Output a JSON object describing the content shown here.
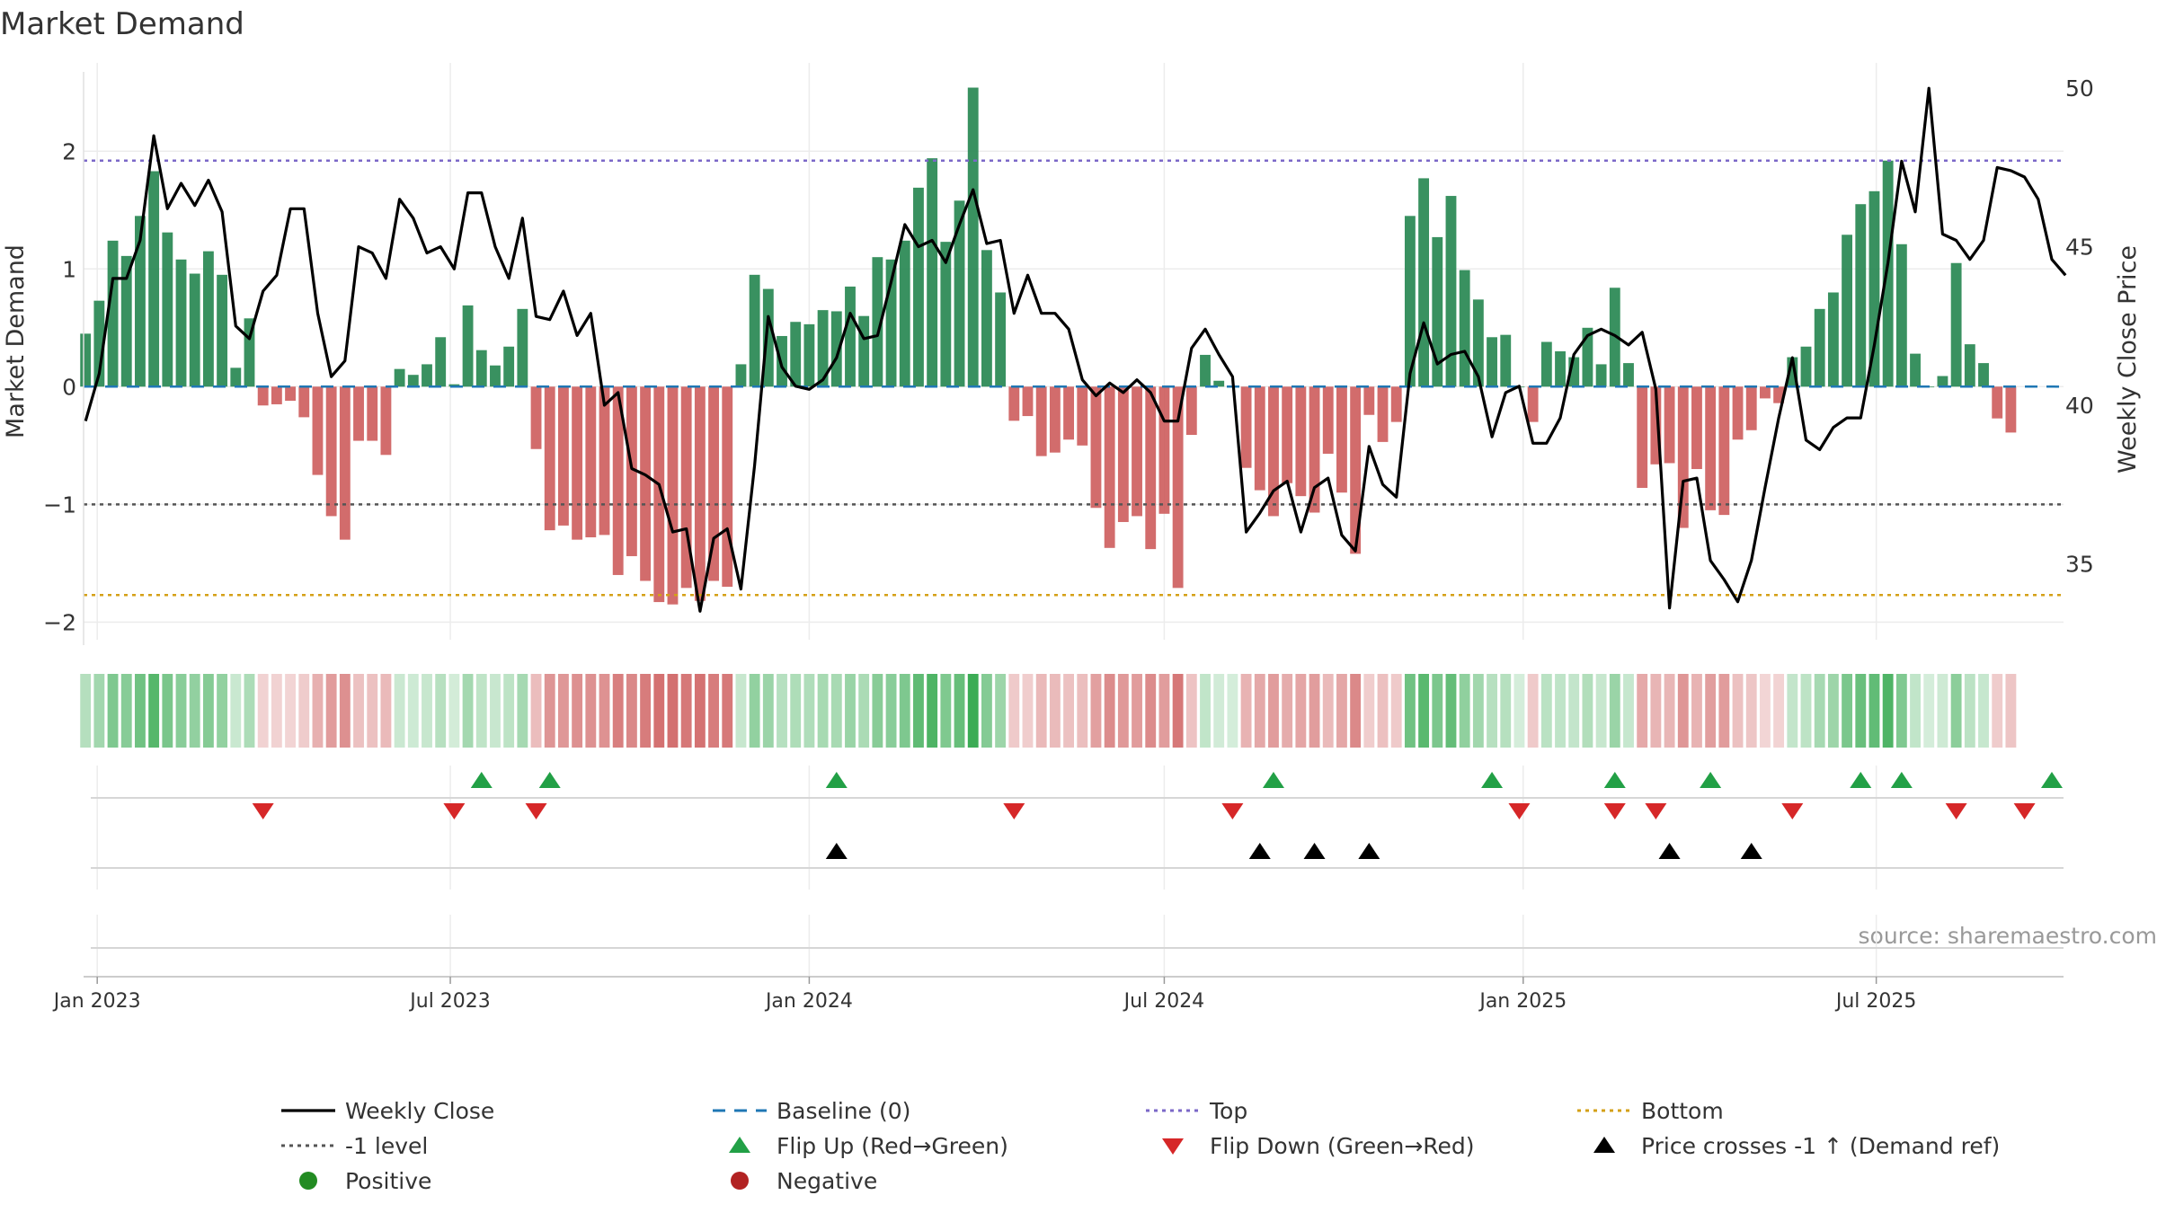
{
  "chart_data": {
    "type": "bar",
    "title": "Market Demand",
    "ylabel": "Market Demand",
    "y2label": "Weekly Close Price",
    "ylim": [
      -2.15,
      2.75
    ],
    "y2lim": [
      32.6,
      50.8
    ],
    "yticks": [
      -2,
      -1,
      0,
      1,
      2
    ],
    "y2ticks": [
      35,
      40,
      45,
      50
    ],
    "x_start": "2022-12-25",
    "x_end": "2025-10-05",
    "week0": "2022-12-26",
    "xticks": [
      {
        "date": "2023-01-01",
        "label": "Jan 2023"
      },
      {
        "date": "2023-07-01",
        "label": "Jul 2023"
      },
      {
        "date": "2024-01-01",
        "label": "Jan 2024"
      },
      {
        "date": "2024-07-01",
        "label": "Jul 2024"
      },
      {
        "date": "2025-01-01",
        "label": "Jan 2025"
      },
      {
        "date": "2025-07-01",
        "label": "Jul 2025"
      }
    ],
    "reference_lines": {
      "baseline": 0,
      "top": 1.92,
      "minus_one": -1,
      "bottom": -1.77
    },
    "demand": [
      0.45,
      0.73,
      1.24,
      1.11,
      1.45,
      1.83,
      1.31,
      1.08,
      0.96,
      1.15,
      0.95,
      0.16,
      0.58,
      -0.16,
      -0.15,
      -0.12,
      -0.26,
      -0.75,
      -1.1,
      -1.3,
      -0.46,
      -0.46,
      -0.58,
      0.15,
      0.1,
      0.19,
      0.42,
      0.02,
      0.69,
      0.31,
      0.18,
      0.34,
      0.66,
      -0.53,
      -1.22,
      -1.18,
      -1.3,
      -1.28,
      -1.26,
      -1.6,
      -1.44,
      -1.65,
      -1.83,
      -1.85,
      -1.71,
      -1.82,
      -1.65,
      -1.7,
      0.19,
      0.95,
      0.83,
      0.43,
      0.55,
      0.53,
      0.65,
      0.64,
      0.85,
      0.6,
      1.1,
      1.08,
      1.24,
      1.69,
      1.94,
      1.23,
      1.58,
      2.54,
      1.16,
      0.8,
      -0.29,
      -0.25,
      -0.59,
      -0.56,
      -0.45,
      -0.5,
      -1.03,
      -1.37,
      -1.15,
      -1.1,
      -1.38,
      -1.08,
      -1.71,
      -0.41,
      0.27,
      0.05,
      0.0,
      -0.69,
      -0.88,
      -1.1,
      -0.82,
      -0.93,
      -1.07,
      -0.57,
      -0.9,
      -1.42,
      -0.24,
      -0.47,
      -0.3,
      1.45,
      1.77,
      1.27,
      1.62,
      0.99,
      0.74,
      0.42,
      0.44,
      0.0,
      -0.3,
      0.38,
      0.3,
      0.25,
      0.5,
      0.19,
      0.84,
      0.2,
      -0.86,
      -0.66,
      -0.65,
      -1.2,
      -0.7,
      -1.05,
      -1.09,
      -0.45,
      -0.37,
      -0.1,
      -0.14,
      0.25,
      0.34,
      0.66,
      0.8,
      1.29,
      1.55,
      1.66,
      1.92,
      1.21,
      0.28,
      0.0,
      0.09,
      1.05,
      0.36,
      0.2,
      -0.27,
      -0.39
    ],
    "close": [
      39.5,
      41.0,
      44.0,
      44.0,
      45.2,
      48.5,
      46.2,
      47.0,
      46.3,
      47.1,
      46.1,
      42.5,
      42.1,
      43.6,
      44.1,
      46.2,
      46.2,
      42.9,
      40.9,
      41.4,
      45.0,
      44.8,
      44.0,
      46.5,
      45.9,
      44.8,
      45.0,
      44.3,
      46.7,
      46.7,
      45.0,
      44.0,
      45.9,
      42.8,
      42.7,
      43.6,
      42.2,
      42.9,
      40.0,
      40.4,
      38.0,
      37.8,
      37.5,
      36.0,
      36.1,
      33.5,
      35.8,
      36.1,
      34.2,
      38.1,
      42.8,
      41.2,
      40.6,
      40.5,
      40.8,
      41.5,
      42.9,
      42.1,
      42.2,
      43.9,
      45.7,
      45.0,
      45.2,
      44.5,
      45.7,
      46.8,
      45.1,
      45.2,
      42.9,
      44.1,
      42.9,
      42.9,
      42.4,
      40.8,
      40.3,
      40.7,
      40.4,
      40.8,
      40.4,
      39.5,
      39.5,
      41.8,
      42.4,
      41.6,
      40.9,
      36.0,
      36.6,
      37.3,
      37.6,
      36.0,
      37.4,
      37.7,
      35.9,
      35.4,
      38.7,
      37.5,
      37.1,
      41.0,
      42.6,
      41.3,
      41.6,
      41.7,
      40.9,
      39.0,
      40.4,
      40.6,
      38.8,
      38.8,
      39.6,
      41.6,
      42.2,
      42.4,
      42.2,
      41.9,
      42.3,
      40.5,
      33.6,
      37.6,
      37.7,
      35.1,
      34.5,
      33.8,
      35.1,
      37.4,
      39.6,
      41.5,
      38.9,
      38.6,
      39.3,
      39.6,
      39.6,
      41.9,
      44.5,
      47.7,
      46.1,
      50.0,
      45.4,
      45.2,
      44.6,
      45.2,
      47.5,
      47.4,
      47.2,
      46.5,
      44.6,
      44.1
    ],
    "flip_up_weeks": [
      29,
      34,
      55,
      87,
      103,
      112,
      119,
      130,
      133,
      144
    ],
    "flip_down_weeks": [
      13,
      27,
      33,
      68,
      84,
      105,
      112,
      115,
      125,
      137,
      142
    ],
    "price_cross_weeks": [
      55,
      86,
      90,
      94,
      116,
      122
    ],
    "source_text": "source: sharemaestro.com",
    "colors": {
      "positive": "#2e8b57",
      "negative": "#cd5c5c",
      "close_line": "#000000",
      "baseline": "#1f77b4",
      "top": "#7b68c8",
      "minus_one": "#555555",
      "bottom": "#d4a017",
      "flip_up": "#22a046",
      "flip_down": "#d62728",
      "cross": "#000000"
    },
    "legend": [
      {
        "label": "Weekly Close",
        "kind": "line",
        "color": "#000000"
      },
      {
        "label": "Baseline (0)",
        "kind": "dash",
        "color": "#1f77b4"
      },
      {
        "label": "Top",
        "kind": "dot",
        "color": "#7b68c8"
      },
      {
        "label": "Bottom",
        "kind": "dot",
        "color": "#d4a017"
      },
      {
        "label": "-1 level",
        "kind": "dot",
        "color": "#555555"
      },
      {
        "label": "Flip Up (Red→Green)",
        "kind": "tri-up",
        "color": "#22a046"
      },
      {
        "label": "Flip Down (Green→Red)",
        "kind": "tri-down",
        "color": "#d62728"
      },
      {
        "label": "Price crosses -1 ↑ (Demand ref)",
        "kind": "tri-up",
        "color": "#000000"
      },
      {
        "label": "Positive",
        "kind": "circle",
        "color": "#228b22"
      },
      {
        "label": "Negative",
        "kind": "circle",
        "color": "#b22222"
      }
    ]
  }
}
